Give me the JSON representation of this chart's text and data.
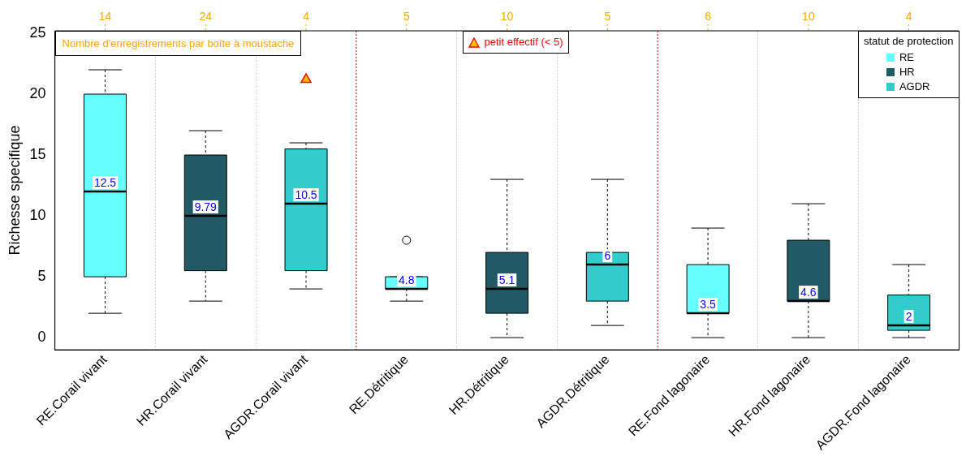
{
  "chart_data": {
    "type": "box",
    "ylabel": "Richesse specifique",
    "legend_title": "statut de protection",
    "categories": [
      "RE.Corail vivant",
      "HR.Corail vivant",
      "AGDR.Corail vivant",
      "RE.Détritique",
      "HR.Détritique",
      "AGDR.Détritique",
      "RE.Fond lagonaire",
      "HR.Fond lagonaire",
      "AGDR.Fond lagonaire"
    ],
    "series": [
      {
        "name": "RE",
        "color": "#66ffff",
        "boxes": [
          {
            "low": 2,
            "q1": 5,
            "median": 12,
            "q3": 20,
            "high": 22
          },
          null,
          null,
          {
            "low": 3,
            "q1": 4,
            "median": 4,
            "q3": 5,
            "high": 5,
            "outliers": [
              8
            ]
          },
          null,
          null,
          {
            "low": 0,
            "q1": 2,
            "median": 2,
            "q3": 6,
            "high": 9
          },
          null,
          null
        ],
        "value_labels": [
          "12.5",
          null,
          null,
          "4.8",
          null,
          null,
          "3.5",
          null,
          null
        ]
      },
      {
        "name": "HR",
        "color": "#225966",
        "boxes": [
          null,
          {
            "low": 3,
            "q1": 5.5,
            "median": 10,
            "q3": 15,
            "high": 17
          },
          null,
          null,
          {
            "low": 0,
            "q1": 2,
            "median": 4,
            "q3": 7,
            "high": 13
          },
          null,
          null,
          {
            "low": 0,
            "q1": 3,
            "median": 3,
            "q3": 8,
            "high": 11
          },
          null
        ],
        "value_labels": [
          null,
          "9.79",
          null,
          null,
          "5.1",
          null,
          null,
          "4.6",
          null
        ]
      },
      {
        "name": "AGDR",
        "color": "#33cccc",
        "boxes": [
          null,
          null,
          {
            "low": 4,
            "q1": 5.5,
            "median": 11,
            "q3": 15.5,
            "high": 16
          },
          null,
          null,
          {
            "low": 1,
            "q1": 3,
            "median": 6,
            "q3": 7,
            "high": 13
          },
          null,
          null,
          {
            "low": 0,
            "q1": 0.6,
            "median": 1,
            "q3": 3.5,
            "high": 6
          }
        ],
        "value_labels": [
          null,
          null,
          "10.5",
          null,
          null,
          "6",
          null,
          null,
          "2"
        ]
      },
      {
        "name": "petit effectif (< 5)",
        "type": "scatter",
        "color": "#ffc000",
        "marker": "triangle",
        "x": [
          "AGDR.Corail vivant"
        ],
        "values": [
          21.2
        ]
      }
    ],
    "ylim": [
      -1,
      25.2
    ],
    "yticks": [
      0,
      5,
      10,
      15,
      20,
      25
    ],
    "grid": "x",
    "legend": "top right",
    "annotations": [
      "Nombre d'enregistrements par boîte à moustache",
      "14",
      "24",
      "4",
      "5",
      "10",
      "5",
      "6",
      "10",
      "4"
    ]
  }
}
